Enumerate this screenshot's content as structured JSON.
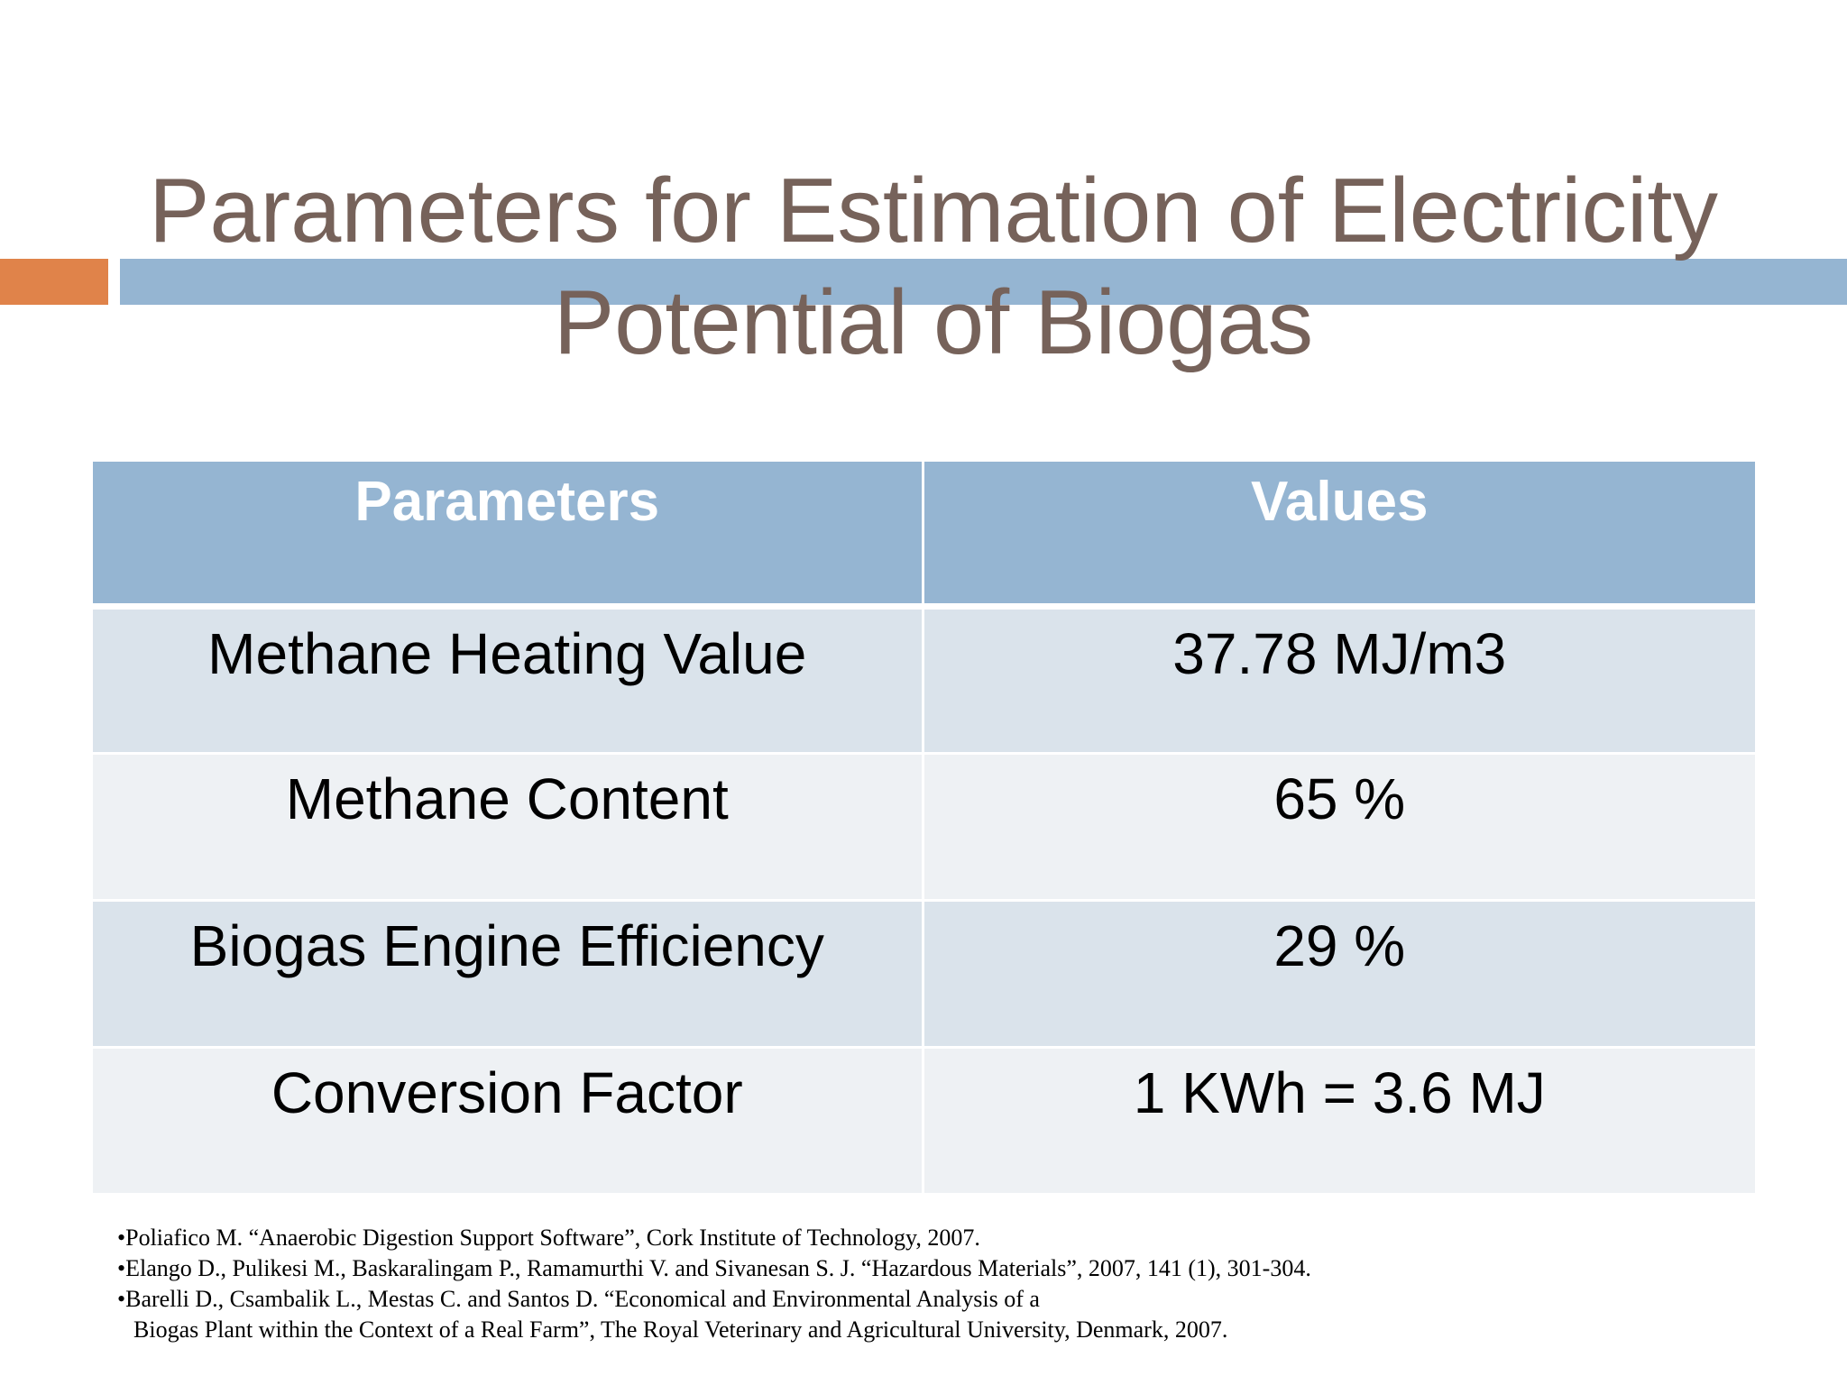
{
  "slide": {
    "title_line1": "Parameters for Estimation of Electricity",
    "title_line2": "Potential of Biogas",
    "accent_colors": {
      "orange": "#e0834a",
      "blue": "#95b5d2",
      "title_text": "#76625a"
    }
  },
  "table": {
    "headers": [
      "Parameters",
      "Values"
    ],
    "rows": [
      [
        "Methane Heating Value",
        "37.78 MJ/m3"
      ],
      [
        "Methane Content",
        "65 %"
      ],
      [
        "Biogas Engine Efficiency",
        "29 %"
      ],
      [
        "Conversion Factor",
        "1 KWh = 3.6 MJ"
      ]
    ]
  },
  "references": [
    "•Poliafico M. “Anaerobic Digestion Support Software”, Cork Institute of Technology, 2007.",
    "•Elango D., Pulikesi M., Baskaralingam P., Ramamurthi V. and Sivanesan S. J. “Hazardous Materials”, 2007, 141 (1), 301-304.",
    "•Barelli D., Csambalik L., Mestas C. and Santos D. “Economical and Environmental Analysis of a",
    "Biogas Plant within the Context of a Real Farm”, The Royal Veterinary and Agricultural University, Denmark, 2007."
  ]
}
